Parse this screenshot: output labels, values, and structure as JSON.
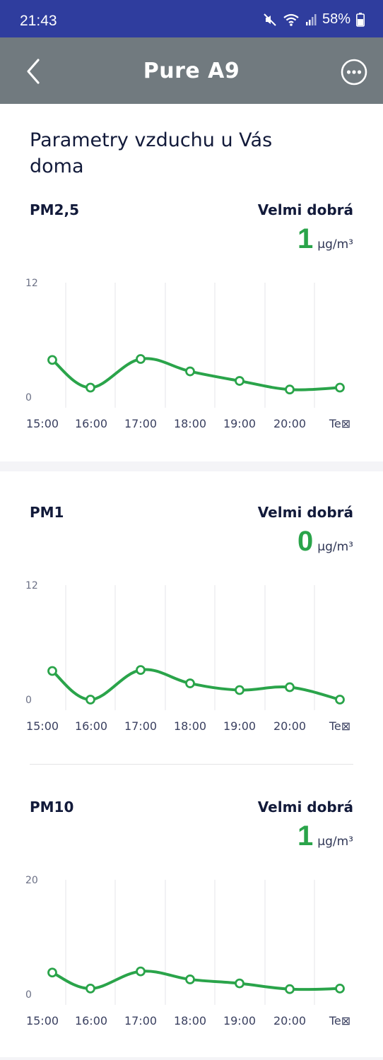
{
  "status_bar": {
    "time": "21:43",
    "battery": "58%",
    "icons": [
      "mute-icon",
      "wifi-icon",
      "signal-icon",
      "battery-icon"
    ]
  },
  "app_bar": {
    "title": "Pure A9",
    "back_icon": "chevron-left-icon",
    "more_icon": "more-horizontal-icon"
  },
  "page": {
    "heading": "Parametry vzduchu u Vás doma"
  },
  "colors": {
    "accent": "#2aa44a",
    "status_bar": "#2f3d9e",
    "app_bar": "#717a7f"
  },
  "sections": [
    {
      "label": "PM2,5",
      "quality": "Velmi dobrá",
      "value": "1",
      "unit": "µg/m³"
    },
    {
      "label": "PM1",
      "quality": "Velmi dobrá",
      "value": "0",
      "unit": "µg/m³"
    },
    {
      "label": "PM10",
      "quality": "Velmi dobrá",
      "value": "1",
      "unit": "µg/m³"
    }
  ],
  "chart_data": [
    {
      "type": "line",
      "x": [
        "15:00",
        "16:00",
        "17:00",
        "18:00",
        "19:00",
        "20:00",
        "Te⊠"
      ],
      "series": [
        {
          "values": [
            3.9,
            1.0,
            4.0,
            2.7,
            1.7,
            0.8,
            1.0
          ]
        }
      ],
      "ylim": [
        0,
        12
      ],
      "y_ticks": [
        "12",
        "0"
      ],
      "grid": true
    },
    {
      "type": "line",
      "x": [
        "15:00",
        "16:00",
        "17:00",
        "18:00",
        "19:00",
        "20:00",
        "Te⊠"
      ],
      "series": [
        {
          "values": [
            3.0,
            0.0,
            3.1,
            1.7,
            1.0,
            1.3,
            0.0
          ]
        }
      ],
      "ylim": [
        0,
        12
      ],
      "y_ticks": [
        "12",
        "0"
      ],
      "grid": true
    },
    {
      "type": "line",
      "x": [
        "15:00",
        "16:00",
        "17:00",
        "18:00",
        "19:00",
        "20:00",
        "Te⊠"
      ],
      "series": [
        {
          "values": [
            3.8,
            1.0,
            4.0,
            2.6,
            1.9,
            0.9,
            1.0
          ]
        }
      ],
      "ylim": [
        0,
        20
      ],
      "y_ticks": [
        "20",
        "0"
      ],
      "grid": true
    }
  ]
}
